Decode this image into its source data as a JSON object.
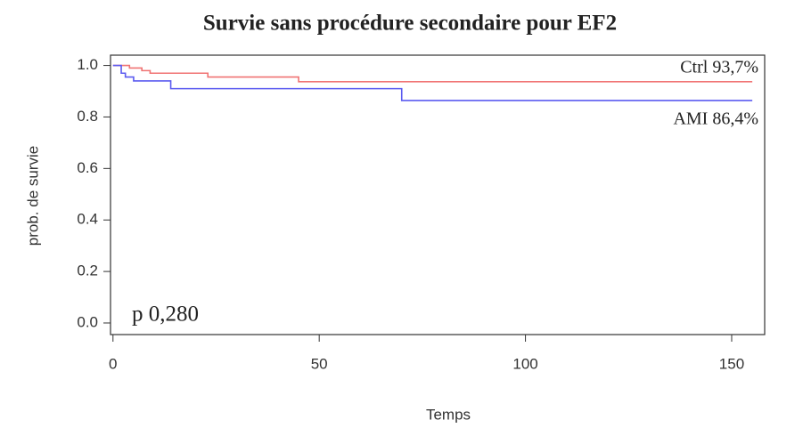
{
  "chart_data": {
    "type": "line",
    "step": "post",
    "title": "Survie sans procédure secondaire pour EF2",
    "x_label": "Temps",
    "y_label": "prob. de survie",
    "xlim": [
      -0.6,
      158
    ],
    "ylim": [
      -0.045,
      1.04
    ],
    "xticks": [
      0,
      50,
      100,
      150
    ],
    "yticks": [
      {
        "value": 0,
        "label": "0.0"
      },
      0.2,
      0.4,
      0.6,
      0.8,
      {
        "value": 1,
        "label": "1.0"
      }
    ],
    "series": [
      {
        "name": "Ctrl",
        "color": "#f07373",
        "x": [
          0,
          4,
          7,
          9,
          23,
          45,
          155
        ],
        "values": [
          1,
          0.99,
          0.98,
          0.97,
          0.955,
          0.937,
          0.937
        ]
      },
      {
        "name": "AMI",
        "color": "#5b5bf0",
        "x": [
          0,
          2,
          3,
          5,
          14,
          70,
          155
        ],
        "values": [
          1,
          0.97,
          0.955,
          0.94,
          0.91,
          0.864,
          0.864
        ]
      }
    ],
    "annotations": [
      "Ctrl 93,7%",
      "AMI 86,4%",
      "p 0,280"
    ]
  }
}
